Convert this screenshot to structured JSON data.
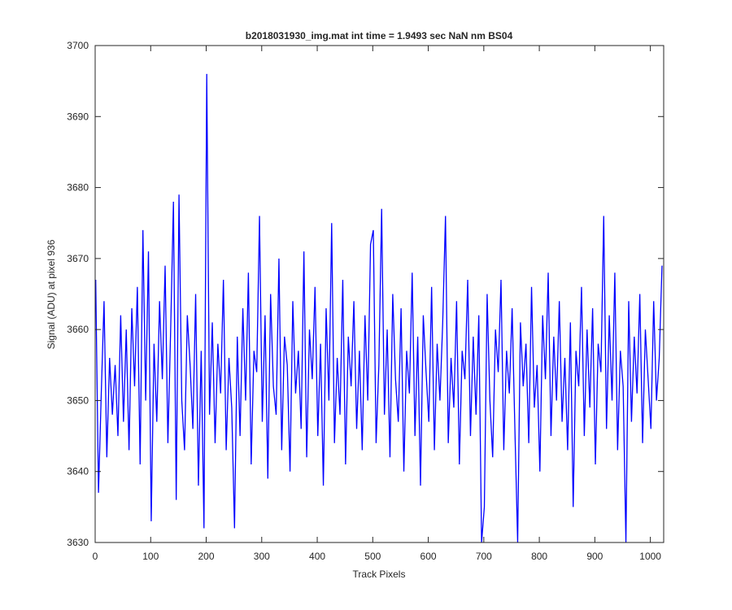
{
  "chart_data": {
    "type": "line",
    "title": "b2018031930_img.mat int time = 1.9493 sec  NaN nm BS04",
    "xlabel": "Track Pixels",
    "ylabel": "Signal (ADU) at pixel 936",
    "color": "#0000ff",
    "xlim": [
      0,
      1024
    ],
    "ylim": [
      3630,
      3700
    ],
    "xticks": [
      0,
      100,
      200,
      300,
      400,
      500,
      600,
      700,
      800,
      900,
      1000
    ],
    "yticks": [
      3630,
      3640,
      3650,
      3660,
      3670,
      3680,
      3690,
      3700
    ],
    "x": [
      1,
      6,
      11,
      16,
      21,
      26,
      31,
      36,
      41,
      46,
      51,
      56,
      61,
      66,
      71,
      76,
      81,
      86,
      91,
      96,
      101,
      106,
      111,
      116,
      121,
      126,
      131,
      136,
      141,
      146,
      151,
      156,
      161,
      166,
      171,
      176,
      181,
      186,
      191,
      196,
      201,
      206,
      211,
      216,
      221,
      226,
      231,
      236,
      241,
      246,
      251,
      256,
      261,
      266,
      271,
      276,
      281,
      286,
      291,
      296,
      301,
      306,
      311,
      316,
      321,
      326,
      331,
      336,
      341,
      346,
      351,
      356,
      361,
      366,
      371,
      376,
      381,
      386,
      391,
      396,
      401,
      406,
      411,
      416,
      421,
      426,
      431,
      436,
      441,
      446,
      451,
      456,
      461,
      466,
      471,
      476,
      481,
      486,
      491,
      496,
      501,
      506,
      511,
      516,
      521,
      526,
      531,
      536,
      541,
      546,
      551,
      556,
      561,
      566,
      571,
      576,
      581,
      586,
      591,
      596,
      601,
      606,
      611,
      616,
      621,
      626,
      631,
      636,
      641,
      646,
      651,
      656,
      661,
      666,
      671,
      676,
      681,
      686,
      691,
      696,
      701,
      706,
      711,
      716,
      721,
      726,
      731,
      736,
      741,
      746,
      751,
      756,
      761,
      766,
      771,
      776,
      781,
      786,
      791,
      796,
      801,
      806,
      811,
      816,
      821,
      826,
      831,
      836,
      841,
      846,
      851,
      856,
      861,
      866,
      871,
      876,
      881,
      886,
      891,
      896,
      901,
      906,
      911,
      916,
      921,
      926,
      931,
      936,
      941,
      946,
      951,
      956,
      961,
      966,
      971,
      976,
      981,
      986,
      991,
      996,
      1001,
      1006,
      1011,
      1016,
      1021
    ],
    "values": [
      3667,
      3637,
      3651,
      3664,
      3642,
      3656,
      3648,
      3655,
      3645,
      3662,
      3647,
      3660,
      3643,
      3663,
      3652,
      3666,
      3641,
      3674,
      3650,
      3671,
      3633,
      3658,
      3647,
      3664,
      3653,
      3669,
      3644,
      3660,
      3678,
      3636,
      3679,
      3650,
      3643,
      3662,
      3655,
      3646,
      3665,
      3638,
      3657,
      3632,
      3696,
      3648,
      3661,
      3644,
      3658,
      3651,
      3667,
      3643,
      3656,
      3649,
      3632,
      3659,
      3645,
      3663,
      3650,
      3668,
      3641,
      3657,
      3654,
      3676,
      3647,
      3662,
      3639,
      3665,
      3652,
      3648,
      3670,
      3643,
      3659,
      3655,
      3640,
      3664,
      3651,
      3657,
      3646,
      3671,
      3642,
      3660,
      3653,
      3666,
      3645,
      3658,
      3638,
      3663,
      3650,
      3675,
      3644,
      3656,
      3648,
      3667,
      3641,
      3659,
      3652,
      3664,
      3646,
      3657,
      3643,
      3662,
      3650,
      3672,
      3674,
      3644,
      3655,
      3677,
      3648,
      3660,
      3642,
      3665,
      3653,
      3647,
      3663,
      3640,
      3657,
      3651,
      3668,
      3645,
      3659,
      3638,
      3662,
      3654,
      3647,
      3666,
      3643,
      3658,
      3650,
      3661,
      3676,
      3644,
      3656,
      3649,
      3664,
      3641,
      3657,
      3653,
      3667,
      3645,
      3659,
      3648,
      3662,
      3630,
      3635,
      3665,
      3650,
      3642,
      3660,
      3654,
      3667,
      3643,
      3657,
      3651,
      3663,
      3646,
      3630,
      3661,
      3652,
      3658,
      3644,
      3666,
      3649,
      3655,
      3640,
      3662,
      3653,
      3668,
      3645,
      3659,
      3650,
      3664,
      3647,
      3656,
      3643,
      3661,
      3635,
      3657,
      3652,
      3666,
      3645,
      3660,
      3649,
      3663,
      3641,
      3658,
      3654,
      3676,
      3646,
      3662,
      3650,
      3668,
      3643,
      3657,
      3652,
      3630,
      3664,
      3647,
      3659,
      3651,
      3665,
      3644,
      3660,
      3653,
      3646,
      3664,
      3650,
      3656,
      3669
    ]
  }
}
